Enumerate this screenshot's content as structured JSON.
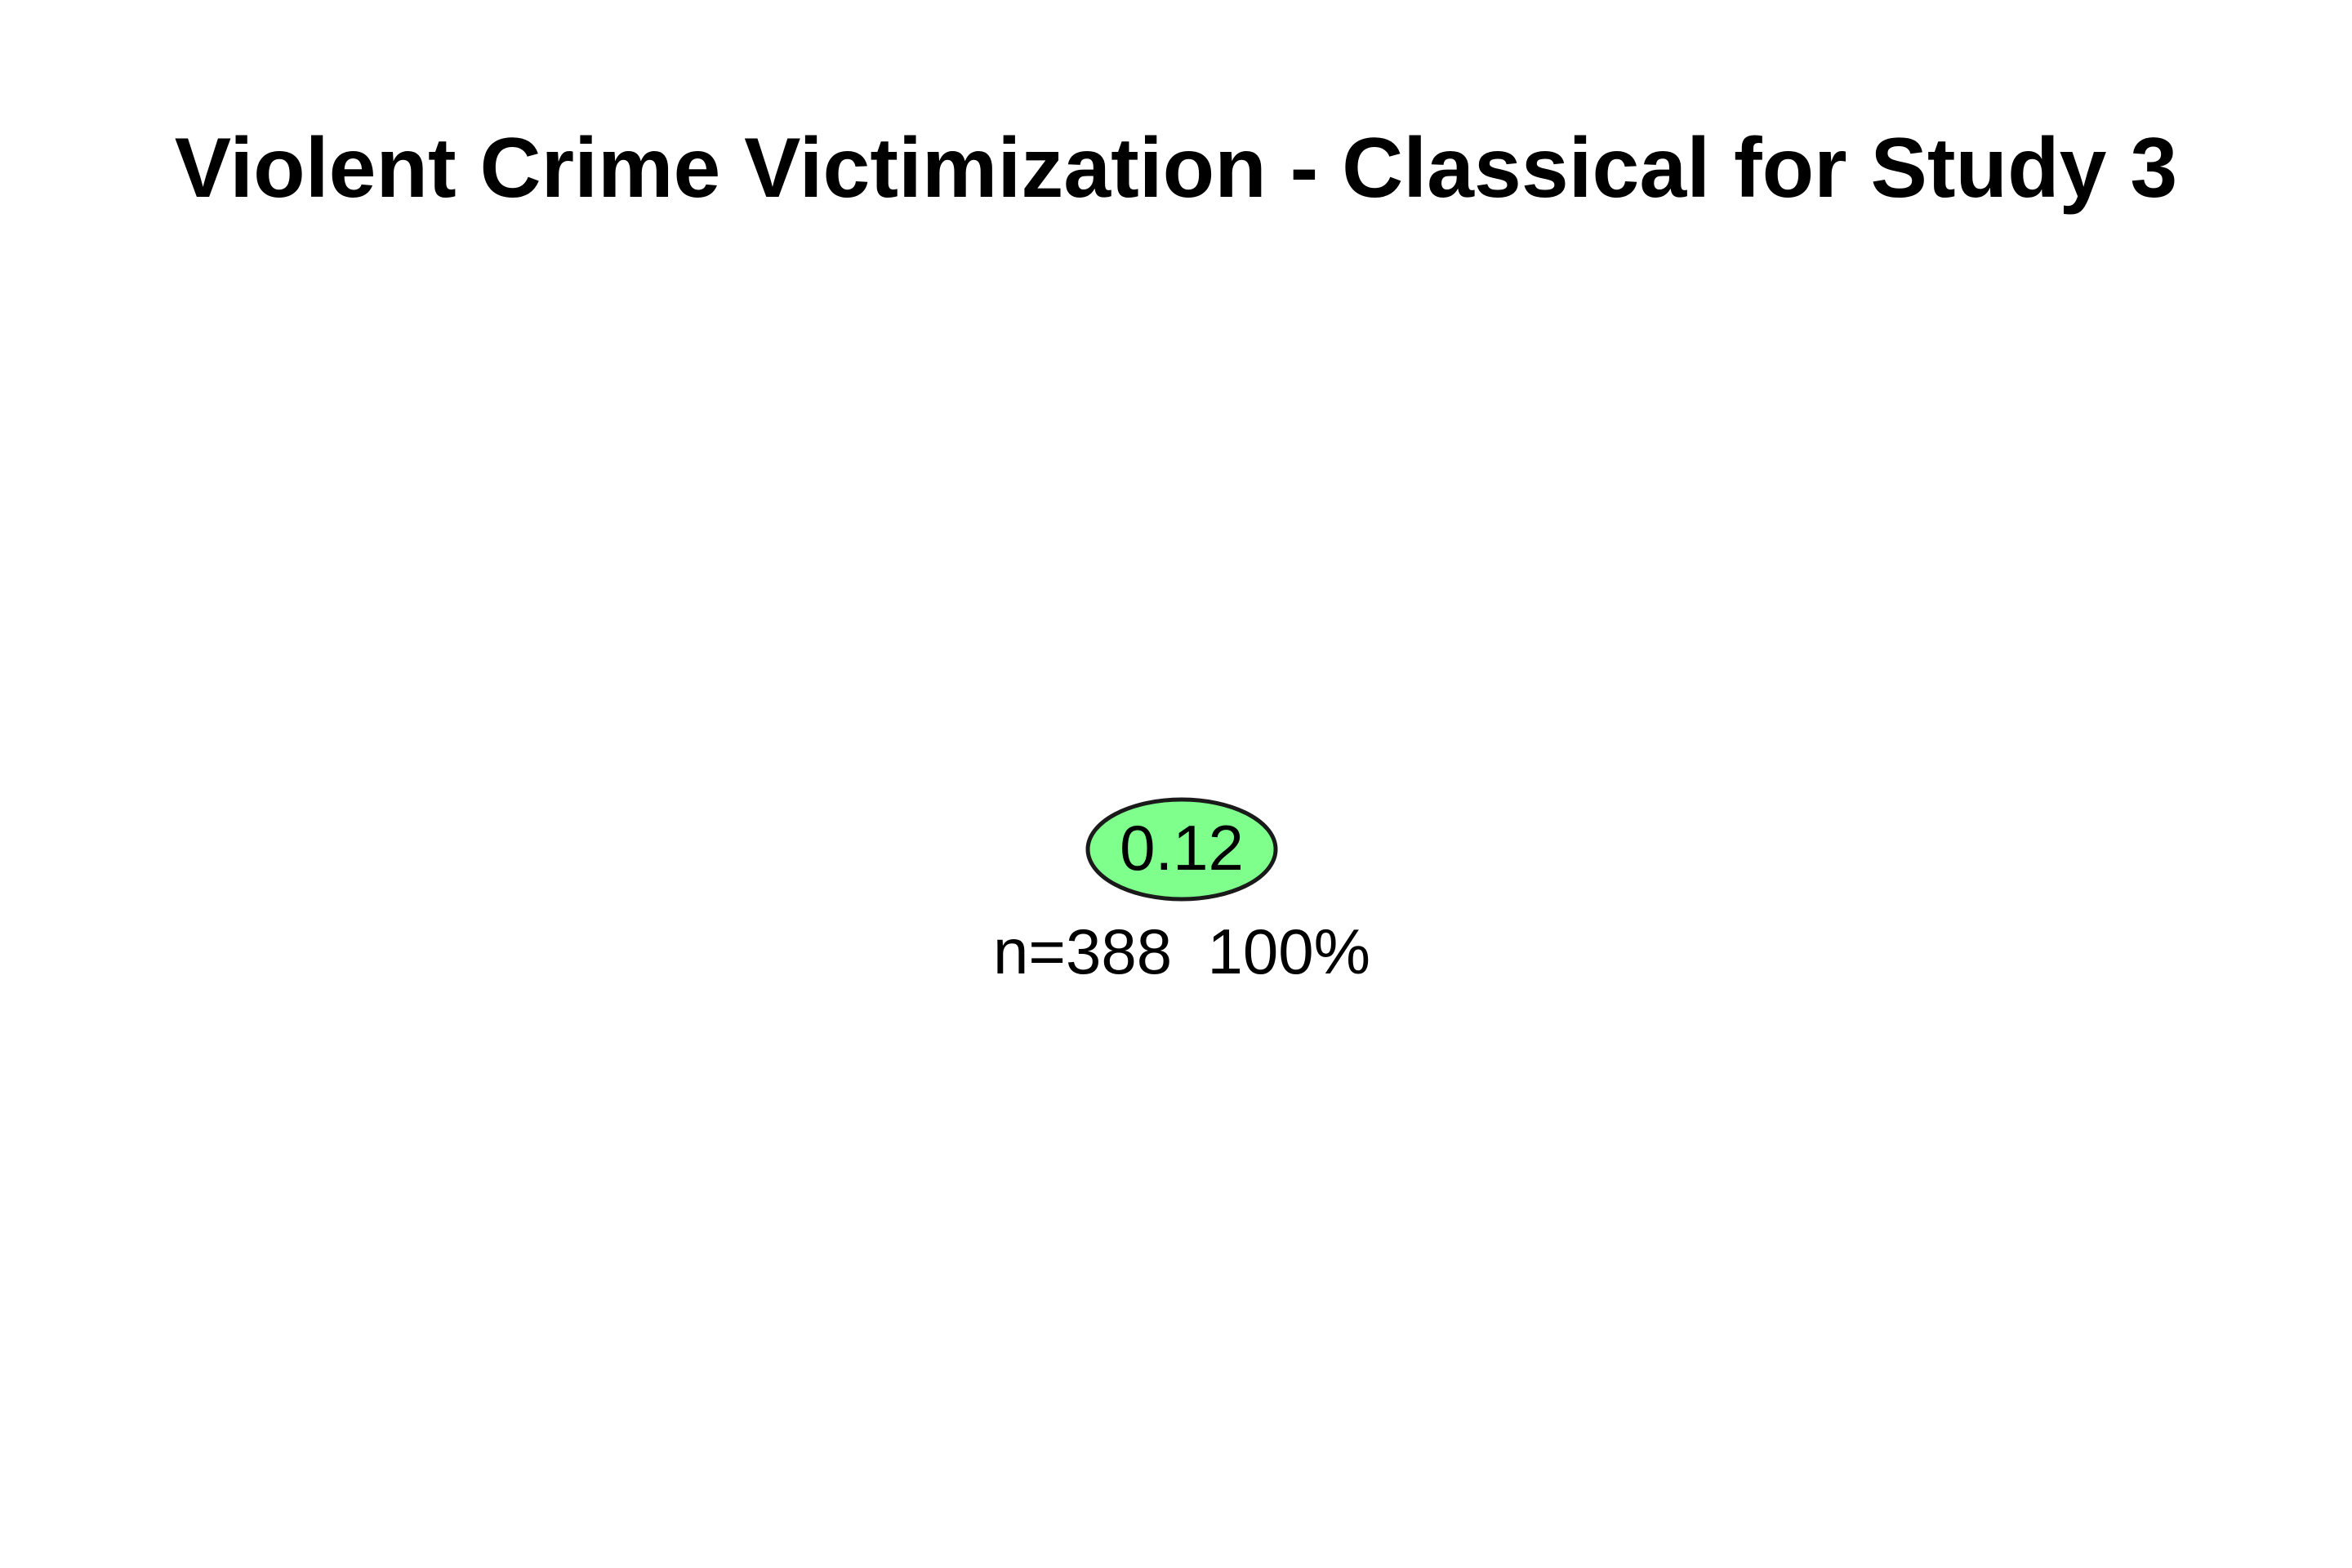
{
  "title": "Violent Crime Victimization - Classical for Study 3",
  "tree": {
    "nodes": [
      {
        "id": "root",
        "value_label": "0.12",
        "info_label": "n=388  100%",
        "fill": "#7fff8c",
        "stroke": "#1a1a1a"
      }
    ]
  }
}
